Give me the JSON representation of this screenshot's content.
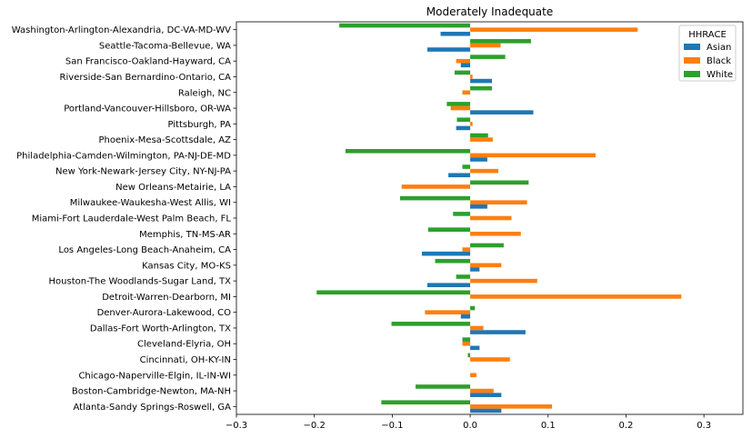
{
  "chart_data": {
    "type": "bar",
    "orientation": "horizontal",
    "title": "Moderately Inadequate",
    "xlabel": "",
    "ylabel": "",
    "xlim": [
      -0.3,
      0.35
    ],
    "xticks": [
      -0.3,
      -0.2,
      -0.1,
      0.0,
      0.1,
      0.2,
      0.3
    ],
    "xtick_labels": [
      "−0.3",
      "−0.2",
      "−0.1",
      "0.0",
      "0.1",
      "0.2",
      "0.3"
    ],
    "grid": false,
    "legend": {
      "title": "HHRACE",
      "placement": "top-right"
    },
    "categories": [
      "Atlanta-Sandy Springs-Roswell, GA",
      "Boston-Cambridge-Newton, MA-NH",
      "Chicago-Naperville-Elgin, IL-IN-WI",
      "Cincinnati, OH-KY-IN",
      "Cleveland-Elyria, OH",
      "Dallas-Fort Worth-Arlington, TX",
      "Denver-Aurora-Lakewood, CO",
      "Detroit-Warren-Dearborn, MI",
      "Houston-The Woodlands-Sugar Land, TX",
      "Kansas City, MO-KS",
      "Los Angeles-Long Beach-Anaheim, CA",
      "Memphis, TN-MS-AR",
      "Miami-Fort Lauderdale-West Palm Beach, FL",
      "Milwaukee-Waukesha-West Allis, WI",
      "New Orleans-Metairie, LA",
      "New York-Newark-Jersey City, NY-NJ-PA",
      "Philadelphia-Camden-Wilmington, PA-NJ-DE-MD",
      "Phoenix-Mesa-Scottsdale, AZ",
      "Pittsburgh, PA",
      "Portland-Vancouver-Hillsboro, OR-WA",
      "Raleigh, NC",
      "Riverside-San Bernardino-Ontario, CA",
      "San Francisco-Oakland-Hayward, CA",
      "Seattle-Tacoma-Bellevue, WA",
      "Washington-Arlington-Alexandria, DC-VA-MD-WV"
    ],
    "series": [
      {
        "name": "Asian",
        "color": "#1f77b4",
        "values": [
          0.04,
          0.04,
          0.0,
          0.0,
          0.012,
          0.071,
          -0.012,
          0.0,
          -0.055,
          0.012,
          -0.062,
          0.0,
          0.0,
          0.022,
          0.0,
          -0.028,
          0.022,
          0.0,
          -0.018,
          0.081,
          0.0,
          0.028,
          -0.012,
          -0.055,
          -0.038
        ]
      },
      {
        "name": "Black",
        "color": "#ff7f0e",
        "values": [
          0.105,
          0.03,
          0.008,
          0.051,
          -0.01,
          0.017,
          -0.058,
          0.271,
          0.086,
          0.04,
          -0.01,
          0.065,
          0.053,
          0.073,
          -0.088,
          0.036,
          0.161,
          0.029,
          0.003,
          -0.025,
          -0.01,
          0.003,
          -0.018,
          0.039,
          0.215
        ]
      },
      {
        "name": "White",
        "color": "#2ca02c",
        "values": [
          -0.114,
          -0.07,
          0.0,
          -0.003,
          -0.01,
          -0.101,
          0.006,
          -0.197,
          -0.018,
          -0.045,
          0.043,
          -0.054,
          -0.022,
          -0.09,
          0.075,
          -0.01,
          -0.16,
          0.023,
          -0.017,
          -0.03,
          0.028,
          -0.02,
          0.045,
          0.078,
          -0.168
        ]
      }
    ]
  }
}
